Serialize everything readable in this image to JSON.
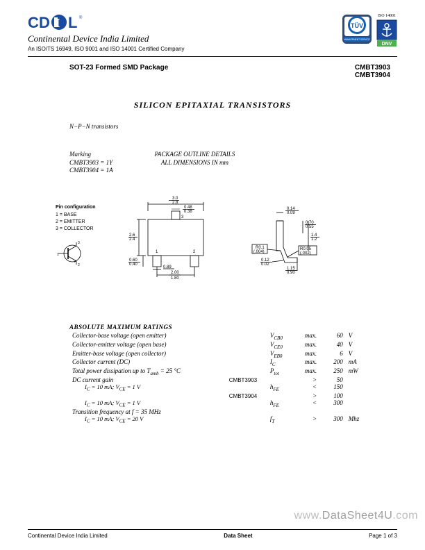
{
  "header": {
    "logo_text": "CDIL",
    "company": "Continental Device India Limited",
    "cert_line": "An ISO/TS 16949,  ISO 9001 and ISO 14001 Certified Company",
    "iso_small": "ISO 14001",
    "logo_colors": {
      "c": "#1a4aa0",
      "d": "#1a4aa0",
      "i": "#1a4aa0",
      "l": "#1a4aa0",
      "oval": "#1a4aa0"
    },
    "tuv": {
      "bg": "#2e4a7a",
      "inner": "#ffffff",
      "ring": "#1560b3",
      "text": "TÜV",
      "sublabel": "MANAGEMENT SERVICE"
    },
    "dnv": {
      "bg": "#1a4aa0",
      "anchor": "#ffffff",
      "label": "DNV"
    }
  },
  "title_row": {
    "left": "SOT-23 Formed SMD Package",
    "parts": [
      "CMBT3903",
      "CMBT3904"
    ]
  },
  "doc_title": "SILICON  EPITAXIAL TRANSISTORS",
  "subtype": "N−P−N  transistors",
  "marking": {
    "head": "Marking",
    "lines": [
      "CMBT3903 = 1Y",
      "CMBT3904 = 1A"
    ]
  },
  "pkg_heading": {
    "l1": "PACKAGE OUTLINE DETAILS",
    "l2": "ALL DIMENSIONS IN  mm"
  },
  "pinconfig": {
    "head": "Pin configuration",
    "lines": [
      "1 =  BASE",
      "2 =  EMITTER",
      "3 =  COLLECTOR"
    ]
  },
  "diagram": {
    "stroke": "#000000",
    "dims_front": {
      "w_max": "3.0",
      "w_min": "2.8",
      "tab_w_max": "0.48",
      "tab_w_min": "0.38",
      "h_max": "2.6",
      "h_min": "2.4",
      "lead_h_max": "0.60",
      "lead_h_min": "0.40",
      "lead_w": "0.89",
      "pitch_max": "2.00",
      "pitch_min": "1.80",
      "pins": [
        "1",
        "2",
        "3"
      ]
    },
    "dims_side": {
      "top_t_max": "0.14",
      "top_t_min": "0.09",
      "seat_max": "0.70",
      "seat_min": "0.55",
      "body_h_max": "1.4",
      "body_h_min": "1.2",
      "r1": "R0.1",
      "r1_in": "(.004)",
      "r2": "R0.05",
      "r2_in": "(.002)",
      "foot_t_max": "0.12",
      "foot_t_min": "0.02",
      "overall_h_max": "1.15",
      "overall_h_min": "0.90"
    }
  },
  "ratings": {
    "head": "ABSOLUTE MAXIMUM RATINGS",
    "rows": [
      {
        "desc": "Collector-base voltage (open emitter)",
        "pn": "",
        "sym": "V",
        "sub": "CB0",
        "rel": "max.",
        "val": "60",
        "unit": "V"
      },
      {
        "desc": "Collector-emitter voltage (open base)",
        "pn": "",
        "sym": "V",
        "sub": "CE0",
        "rel": "max.",
        "val": "40",
        "unit": "V"
      },
      {
        "desc": "Emitter-base voltage (open collector)",
        "pn": "",
        "sym": "V",
        "sub": "EB0",
        "rel": "max.",
        "val": "6",
        "unit": "V"
      },
      {
        "desc": "Collector current (DC)",
        "pn": "",
        "sym": "I",
        "sub": "C",
        "rel": "max.",
        "val": "200",
        "unit": "mA"
      },
      {
        "desc": "Total power dissipation up to T_amb = 25 °C",
        "pn": "",
        "sym": "P",
        "sub": "tot",
        "rel": "max.",
        "val": "250",
        "unit": "mW"
      },
      {
        "desc": "DC current gain",
        "pn": "CMBT3903",
        "sym": "",
        "sub": "",
        "rel": ">",
        "val": "50",
        "unit": ""
      },
      {
        "desc": "",
        "cond": "I_C = 10 mA; V_CE = 1 V",
        "pn": "",
        "sym": "h",
        "sub": "FE",
        "rel": "<",
        "val": "150",
        "unit": ""
      },
      {
        "desc": "",
        "pn": "CMBT3904",
        "sym": "",
        "sub": "",
        "rel": ">",
        "val": "100",
        "unit": ""
      },
      {
        "desc": "",
        "cond": "I_C = 10 mA; V_CE = 1 V",
        "pn": "",
        "sym": "h",
        "sub": "FE",
        "rel": "<",
        "val": "300",
        "unit": ""
      },
      {
        "desc": "Transition frequency at f = 35 MHz",
        "pn": "",
        "sym": "",
        "sub": "",
        "rel": "",
        "val": "",
        "unit": ""
      },
      {
        "desc": "",
        "cond": "I_C = 10 mA; V_CE = 20 V",
        "pn": "",
        "sym": "f",
        "sub": "T",
        "rel": ">",
        "val": "300",
        "unit": "Mhz"
      }
    ]
  },
  "footer": {
    "left": "Continental Device India Limited",
    "mid": "Data Sheet",
    "right": "Page 1 of 3"
  },
  "watermark": {
    "pre": "www.",
    "main": "DataSheet4U",
    "post": ".com"
  }
}
